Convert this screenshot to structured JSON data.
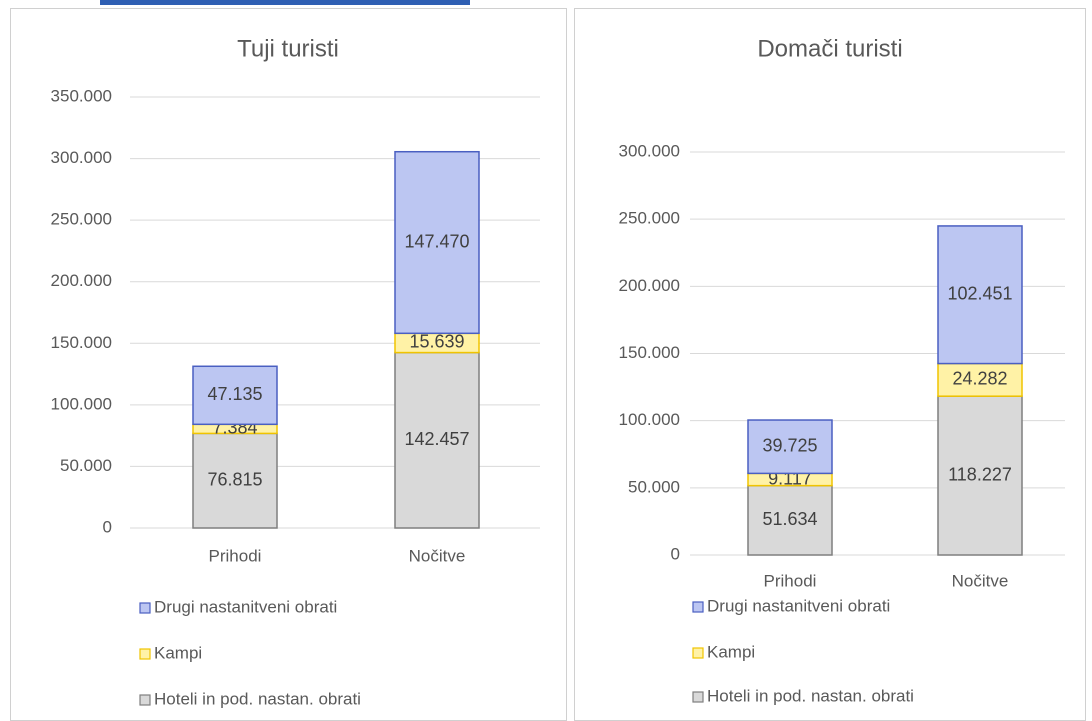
{
  "chart_data": [
    {
      "type": "bar",
      "stacked": true,
      "title": "Tuji turisti",
      "categories": [
        "Prihodi",
        "Nočitve"
      ],
      "series": [
        {
          "name": "Hoteli in pod. nastan. obrati",
          "color": "#d9d9d9",
          "border": "#7f7f7f",
          "values": [
            76815,
            142457
          ],
          "value_labels": [
            "76.815",
            "142.457"
          ]
        },
        {
          "name": "Kampi",
          "color": "#fff2a6",
          "border": "#f0c400",
          "values": [
            7384,
            15639
          ],
          "value_labels": [
            "7.384",
            "15.639"
          ]
        },
        {
          "name": "Drugi nastanitveni obrati",
          "color": "#bcc6f2",
          "border": "#4a5fc1",
          "values": [
            47135,
            147470
          ],
          "value_labels": [
            "47.135",
            "147.470"
          ]
        }
      ],
      "ylim": [
        0,
        350000
      ],
      "yticks": [
        0,
        {
          "value": 50000,
          "label": "50.000"
        },
        {
          "value": 100000,
          "label": "100.000"
        },
        {
          "value": 150000,
          "label": "150.000"
        },
        {
          "value": 200000,
          "label": "200.000"
        },
        {
          "value": 250000,
          "label": "250.000"
        },
        {
          "value": 300000,
          "label": "300.000"
        },
        {
          "value": 350000,
          "label": "350.000"
        }
      ],
      "grid": true,
      "legend": "bottom"
    },
    {
      "type": "bar",
      "stacked": true,
      "title": "Domači turisti",
      "categories": [
        "Prihodi",
        "Nočitve"
      ],
      "series": [
        {
          "name": "Hoteli in pod. nastan. obrati",
          "color": "#d9d9d9",
          "border": "#7f7f7f",
          "values": [
            51634,
            118227
          ],
          "value_labels": [
            "51.634",
            "118.227"
          ]
        },
        {
          "name": "Kampi",
          "color": "#fff2a6",
          "border": "#f0c400",
          "values": [
            9117,
            24282
          ],
          "value_labels": [
            "9.117",
            "24.282"
          ]
        },
        {
          "name": "Drugi nastanitveni obrati",
          "color": "#bcc6f2",
          "border": "#4a5fc1",
          "values": [
            39725,
            102451
          ],
          "value_labels": [
            "39.725",
            "102.451"
          ]
        }
      ],
      "ylim": [
        0,
        300000
      ],
      "yticks": [
        0,
        {
          "value": 50000,
          "label": "50.000"
        },
        {
          "value": 100000,
          "label": "100.000"
        },
        {
          "value": 150000,
          "label": "150.000"
        },
        {
          "value": 200000,
          "label": "200.000"
        },
        {
          "value": 250000,
          "label": "250.000"
        },
        {
          "value": 300000,
          "label": "300.000"
        }
      ],
      "grid": true,
      "legend": "bottom"
    }
  ]
}
